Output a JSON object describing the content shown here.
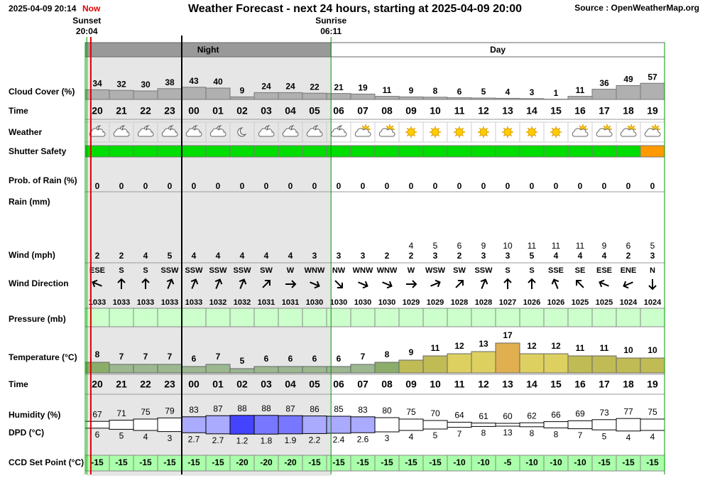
{
  "header": {
    "now_time": "2025-04-09 20:14",
    "now_label": "Now",
    "title": "Weather Forecast - next 24 hours, starting at 2025-04-09 20:00",
    "source": "Source : OpenWeatherMap.org",
    "sunset_label": "Sunset",
    "sunset_time": "20:04",
    "sunrise_label": "Sunrise",
    "sunrise_time": "06:11",
    "night_label": "Night",
    "day_label": "Day"
  },
  "rows": {
    "cloud_cover": {
      "label": "Cloud Cover (%)",
      "values": [
        34,
        32,
        30,
        38,
        43,
        40,
        9,
        24,
        24,
        22,
        21,
        19,
        11,
        9,
        8,
        6,
        5,
        4,
        3,
        1,
        11,
        36,
        49,
        57
      ]
    },
    "time": {
      "label": "Time",
      "values": [
        "20",
        "21",
        "22",
        "23",
        "00",
        "01",
        "02",
        "03",
        "04",
        "05",
        "06",
        "07",
        "08",
        "09",
        "10",
        "11",
        "12",
        "13",
        "14",
        "15",
        "16",
        "17",
        "18",
        "19"
      ]
    },
    "weather": {
      "label": "Weather"
    },
    "shutter_safety": {
      "label": "Shutter Safety"
    },
    "rain_probability": {
      "label": "Prob. of Rain (%)",
      "values": [
        0,
        0,
        0,
        0,
        0,
        0,
        0,
        0,
        0,
        0,
        0,
        0,
        0,
        0,
        0,
        0,
        0,
        0,
        0,
        0,
        0,
        0,
        0,
        0
      ]
    },
    "rain": {
      "label": "Rain (mm)"
    },
    "wind": {
      "label": "Wind (mph)",
      "values": [
        2,
        2,
        4,
        5,
        4,
        4,
        4,
        4,
        4,
        3,
        3,
        3,
        2,
        2,
        3,
        2,
        3,
        3,
        5,
        4,
        4,
        4,
        2,
        3
      ],
      "gusts": [
        null,
        null,
        null,
        null,
        null,
        null,
        null,
        null,
        null,
        null,
        null,
        null,
        null,
        4,
        5,
        6,
        9,
        10,
        11,
        11,
        11,
        9,
        6,
        5
      ]
    },
    "wind_direction": {
      "label": "Wind Direction",
      "values": [
        "ESE",
        "S",
        "S",
        "SSW",
        "SSW",
        "SSW",
        "SSW",
        "SW",
        "W",
        "WNW",
        "NW",
        "WNW",
        "WNW",
        "W",
        "WSW",
        "SW",
        "SSW",
        "S",
        "S",
        "SSE",
        "SE",
        "ESE",
        "ENE",
        "N"
      ]
    },
    "pressure": {
      "label": "Pressure (mb)",
      "values": [
        1033,
        1033,
        1033,
        1033,
        1033,
        1032,
        1032,
        1031,
        1031,
        1030,
        1030,
        1030,
        1030,
        1029,
        1029,
        1028,
        1028,
        1027,
        1026,
        1026,
        1025,
        1025,
        1024,
        1024
      ]
    },
    "temperature": {
      "label": "Temperature (°C)",
      "values": [
        8,
        7,
        7,
        7,
        6,
        7,
        5,
        6,
        6,
        6,
        6,
        7,
        8,
        9,
        11,
        12,
        13,
        17,
        12,
        12,
        11,
        11,
        10,
        10
      ]
    },
    "humidity": {
      "label": "Humidity (%)",
      "values": [
        67,
        71,
        75,
        79,
        83,
        87,
        88,
        88,
        87,
        86,
        85,
        83,
        80,
        75,
        70,
        64,
        61,
        60,
        62,
        66,
        69,
        73,
        77,
        75
      ]
    },
    "dpd": {
      "label": "DPD (°C)",
      "values": [
        6,
        5,
        4,
        3,
        2.7,
        2.7,
        1.2,
        1.8,
        1.9,
        2.2,
        2.4,
        2.6,
        3,
        4,
        5,
        7,
        8,
        13,
        8,
        8,
        7,
        5,
        4,
        4
      ]
    },
    "ccd_set_point": {
      "label": "CCD Set Point (°C)",
      "values": [
        -15,
        -15,
        -15,
        -15,
        -15,
        -15,
        -20,
        -20,
        -20,
        -15,
        -15,
        -15,
        -15,
        -15,
        -15,
        -10,
        -10,
        -5,
        -10,
        -10,
        -10,
        -15,
        -15,
        -15
      ]
    }
  }
}
